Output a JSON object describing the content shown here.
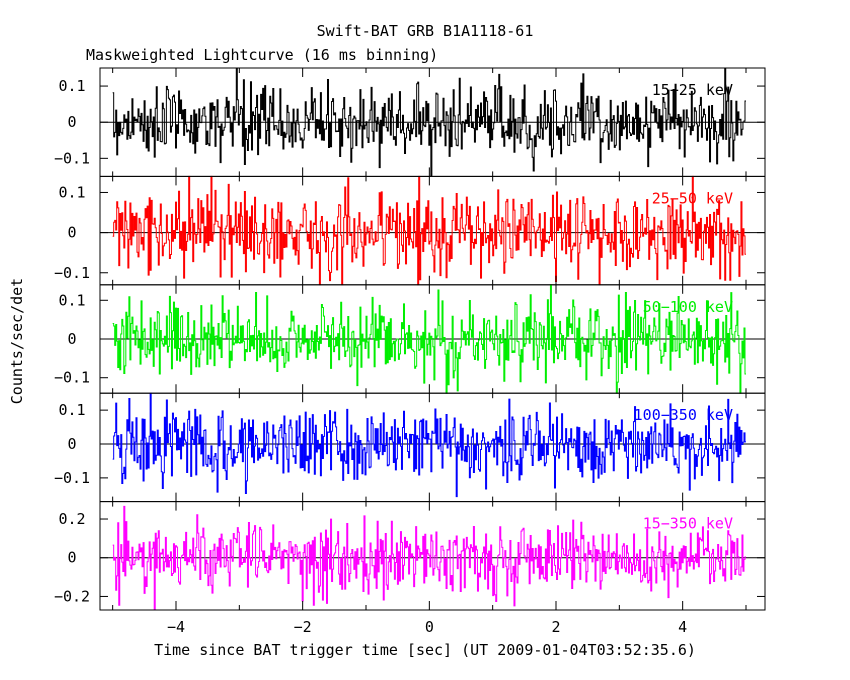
{
  "chart_data": {
    "type": "line",
    "title": "Swift-BAT GRB B1A1118-61",
    "subtitle": "Maskweighted Lightcurve (16 ms binning)",
    "xlabel": "Time since BAT trigger time [sec] (UT 2009-01-04T03:52:35.6)",
    "ylabel": "Counts/sec/det",
    "xlim": [
      -5.2,
      5.3
    ],
    "x_ticks": [
      -4,
      -2,
      0,
      2,
      4
    ],
    "x_tick_labels": [
      "−4",
      "−2",
      "0",
      "2",
      "4"
    ],
    "data_x_range": [
      -5.0,
      5.0
    ],
    "bin_width": 0.016,
    "grid": false,
    "panels": [
      {
        "name": "15−25 keV",
        "color": "#000000",
        "ylim": [
          -0.15,
          0.15
        ],
        "y_ticks": [
          -0.1,
          0,
          0.1
        ],
        "y_tick_labels": [
          "−0.1",
          "0",
          "0.1"
        ],
        "noise_sigma": 0.05
      },
      {
        "name": "25−50 keV",
        "color": "#ff0000",
        "ylim": [
          -0.13,
          0.14
        ],
        "y_ticks": [
          -0.1,
          0,
          0.1
        ],
        "y_tick_labels": [
          "−0.1",
          "0",
          "0.1"
        ],
        "noise_sigma": 0.05
      },
      {
        "name": "50−100 keV",
        "color": "#00ee00",
        "ylim": [
          -0.14,
          0.14
        ],
        "y_ticks": [
          -0.1,
          0,
          0.1
        ],
        "y_tick_labels": [
          "−0.1",
          "0",
          "0.1"
        ],
        "noise_sigma": 0.05
      },
      {
        "name": "100−350 keV",
        "color": "#0000ff",
        "ylim": [
          -0.17,
          0.15
        ],
        "y_ticks": [
          -0.1,
          0,
          0.1
        ],
        "y_tick_labels": [
          "−0.1",
          "0",
          "0.1"
        ],
        "noise_sigma": 0.055
      },
      {
        "name": "15−350 keV",
        "color": "#ff00ff",
        "ylim": [
          -0.27,
          0.29
        ],
        "y_ticks": [
          -0.2,
          0,
          0.2
        ],
        "y_tick_labels": [
          "−0.2",
          "0",
          "0.2"
        ],
        "noise_sigma": 0.09
      }
    ]
  }
}
